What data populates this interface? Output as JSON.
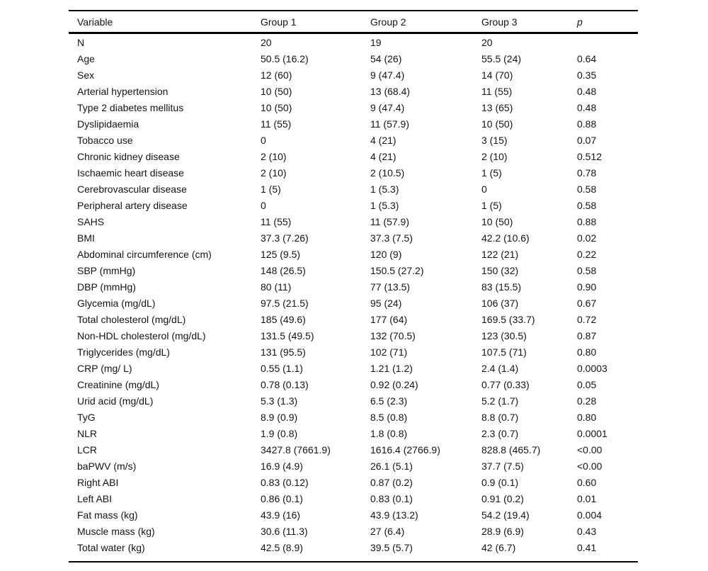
{
  "colors": {
    "background": "#ffffff",
    "text": "#141414",
    "rule": "#000000"
  },
  "table": {
    "headers": [
      "Variable",
      "Group 1",
      "Group 2",
      "Group 3",
      "p"
    ],
    "rows": [
      [
        "N",
        "20",
        "19",
        "20",
        ""
      ],
      [
        "Age",
        "50.5 (16.2)",
        "54 (26)",
        "55.5 (24)",
        "0.64"
      ],
      [
        "Sex",
        "12 (60)",
        "9 (47.4)",
        "14 (70)",
        "0.35"
      ],
      [
        "Arterial hypertension",
        "10 (50)",
        "13 (68.4)",
        "11 (55)",
        "0.48"
      ],
      [
        "Type 2 diabetes mellitus",
        "10 (50)",
        "9 (47.4)",
        "13 (65)",
        "0.48"
      ],
      [
        "Dyslipidaemia",
        "11 (55)",
        "11 (57.9)",
        "10 (50)",
        "0.88"
      ],
      [
        "Tobacco use",
        "0",
        "4 (21)",
        "3 (15)",
        "0.07"
      ],
      [
        "Chronic kidney disease",
        "2 (10)",
        "4 (21)",
        "2 (10)",
        "0.512"
      ],
      [
        "Ischaemic heart disease",
        "2 (10)",
        "2 (10.5)",
        "1 (5)",
        "0.78"
      ],
      [
        "Cerebrovascular disease",
        "1 (5)",
        "1 (5.3)",
        "0",
        "0.58"
      ],
      [
        "Peripheral artery disease",
        "0",
        "1 (5.3)",
        "1 (5)",
        "0.58"
      ],
      [
        "SAHS",
        "11 (55)",
        "11 (57.9)",
        "10 (50)",
        "0.88"
      ],
      [
        "BMI",
        "37.3 (7.26)",
        "37.3 (7.5)",
        "42.2 (10.6)",
        "0.02"
      ],
      [
        "Abdominal circumference (cm)",
        "125 (9.5)",
        "120 (9)",
        "122 (21)",
        "0.22"
      ],
      [
        "SBP (mmHg)",
        "148 (26.5)",
        "150.5 (27.2)",
        "150 (32)",
        "0.58"
      ],
      [
        "DBP (mmHg)",
        "80 (11)",
        "77 (13.5)",
        "83 (15.5)",
        "0.90"
      ],
      [
        "Glycemia (mg/dL)",
        "97.5 (21.5)",
        "95 (24)",
        "106 (37)",
        "0.67"
      ],
      [
        "Total cholesterol (mg/dL)",
        "185 (49.6)",
        "177 (64)",
        "169.5 (33.7)",
        "0.72"
      ],
      [
        "Non-HDL cholesterol (mg/dL)",
        "131.5 (49.5)",
        "132 (70.5)",
        "123 (30.5)",
        "0.87"
      ],
      [
        "Triglycerides (mg/dL)",
        "131 (95.5)",
        "102 (71)",
        "107.5 (71)",
        "0.80"
      ],
      [
        "CRP (mg/ L)",
        "0.55 (1.1)",
        "1.21 (1.2)",
        "2.4 (1.4)",
        "0.0003"
      ],
      [
        "Creatinine (mg/dL)",
        "0.78 (0.13)",
        "0.92 (0.24)",
        "0.77 (0.33)",
        "0.05"
      ],
      [
        "Urid acid (mg/dL)",
        "5.3 (1.3)",
        "6.5 (2.3)",
        "5.2 (1.7)",
        "0.28"
      ],
      [
        "TyG",
        "8.9 (0.9)",
        "8.5 (0.8)",
        "8.8 (0.7)",
        "0.80"
      ],
      [
        "NLR",
        "1.9 (0.8)",
        "1.8 (0.8)",
        "2.3 (0.7)",
        "0.0001"
      ],
      [
        "LCR",
        "3427.8 (7661.9)",
        "1616.4 (2766.9)",
        "828.8 (465.7)",
        "<0.00"
      ],
      [
        "baPWV (m/s)",
        "16.9 (4.9)",
        "26.1 (5.1)",
        "37.7 (7.5)",
        "<0.00"
      ],
      [
        "Right ABI",
        "0.83 (0.12)",
        "0.87 (0.2)",
        "0.9 (0.1)",
        "0.60"
      ],
      [
        "Left ABI",
        "0.86 (0.1)",
        "0.83 (0.1)",
        "0.91 (0.2)",
        "0.01"
      ],
      [
        "Fat mass (kg)",
        "43.9 (16)",
        "43.9 (13.2)",
        "54.2 (19.4)",
        "0.004"
      ],
      [
        "Muscle mass (kg)",
        "30.6 (11.3)",
        "27 (6.4)",
        "28.9 (6.9)",
        "0.43"
      ],
      [
        "Total water (kg)",
        "42.5 (8.9)",
        "39.5 (5.7)",
        "42 (6.7)",
        "0.41"
      ]
    ]
  }
}
